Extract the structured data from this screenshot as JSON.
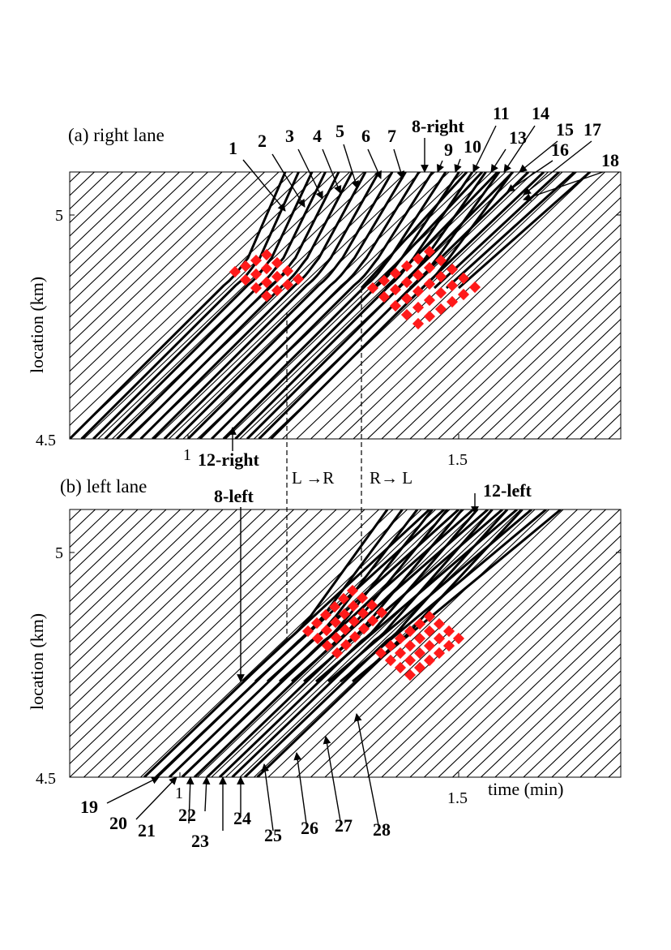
{
  "chart_data": [
    {
      "type": "line",
      "panel_label": "(a) right lane",
      "ylabel": "location (km)",
      "xlabel": "",
      "x_ticks": [
        "1",
        "1.5"
      ],
      "y_ticks": [
        "4.5",
        "5"
      ],
      "xlim": [
        0.82,
        1.82
      ],
      "ylim": [
        4.5,
        5.1
      ],
      "trajectory_labels": [
        "1",
        "2",
        "3",
        "4",
        "5",
        "6",
        "7",
        "8-right",
        "9",
        "10",
        "11",
        "13",
        "14",
        "15",
        "16",
        "17",
        "18"
      ],
      "bottom_labels": [
        "12-right"
      ],
      "lane_change_labels": [
        "L →R",
        "R→ L"
      ],
      "vehicle_count": 28
    },
    {
      "type": "line",
      "panel_label": "(b) left lane",
      "ylabel": "location (km)",
      "xlabel": "time (min)",
      "x_ticks": [
        "1",
        "1.5"
      ],
      "y_ticks": [
        "4.5",
        "5"
      ],
      "xlim": [
        0.82,
        1.82
      ],
      "ylim": [
        4.5,
        5.1
      ],
      "trajectory_labels": [
        "8-left",
        "12-left"
      ],
      "bottom_labels": [
        "19",
        "20",
        "21",
        "22",
        "23",
        "24",
        "25",
        "26",
        "27",
        "28"
      ]
    }
  ],
  "colors": {
    "trajectory": "#000000",
    "background_lines": "#000000",
    "marker": "#ff1a1a"
  }
}
